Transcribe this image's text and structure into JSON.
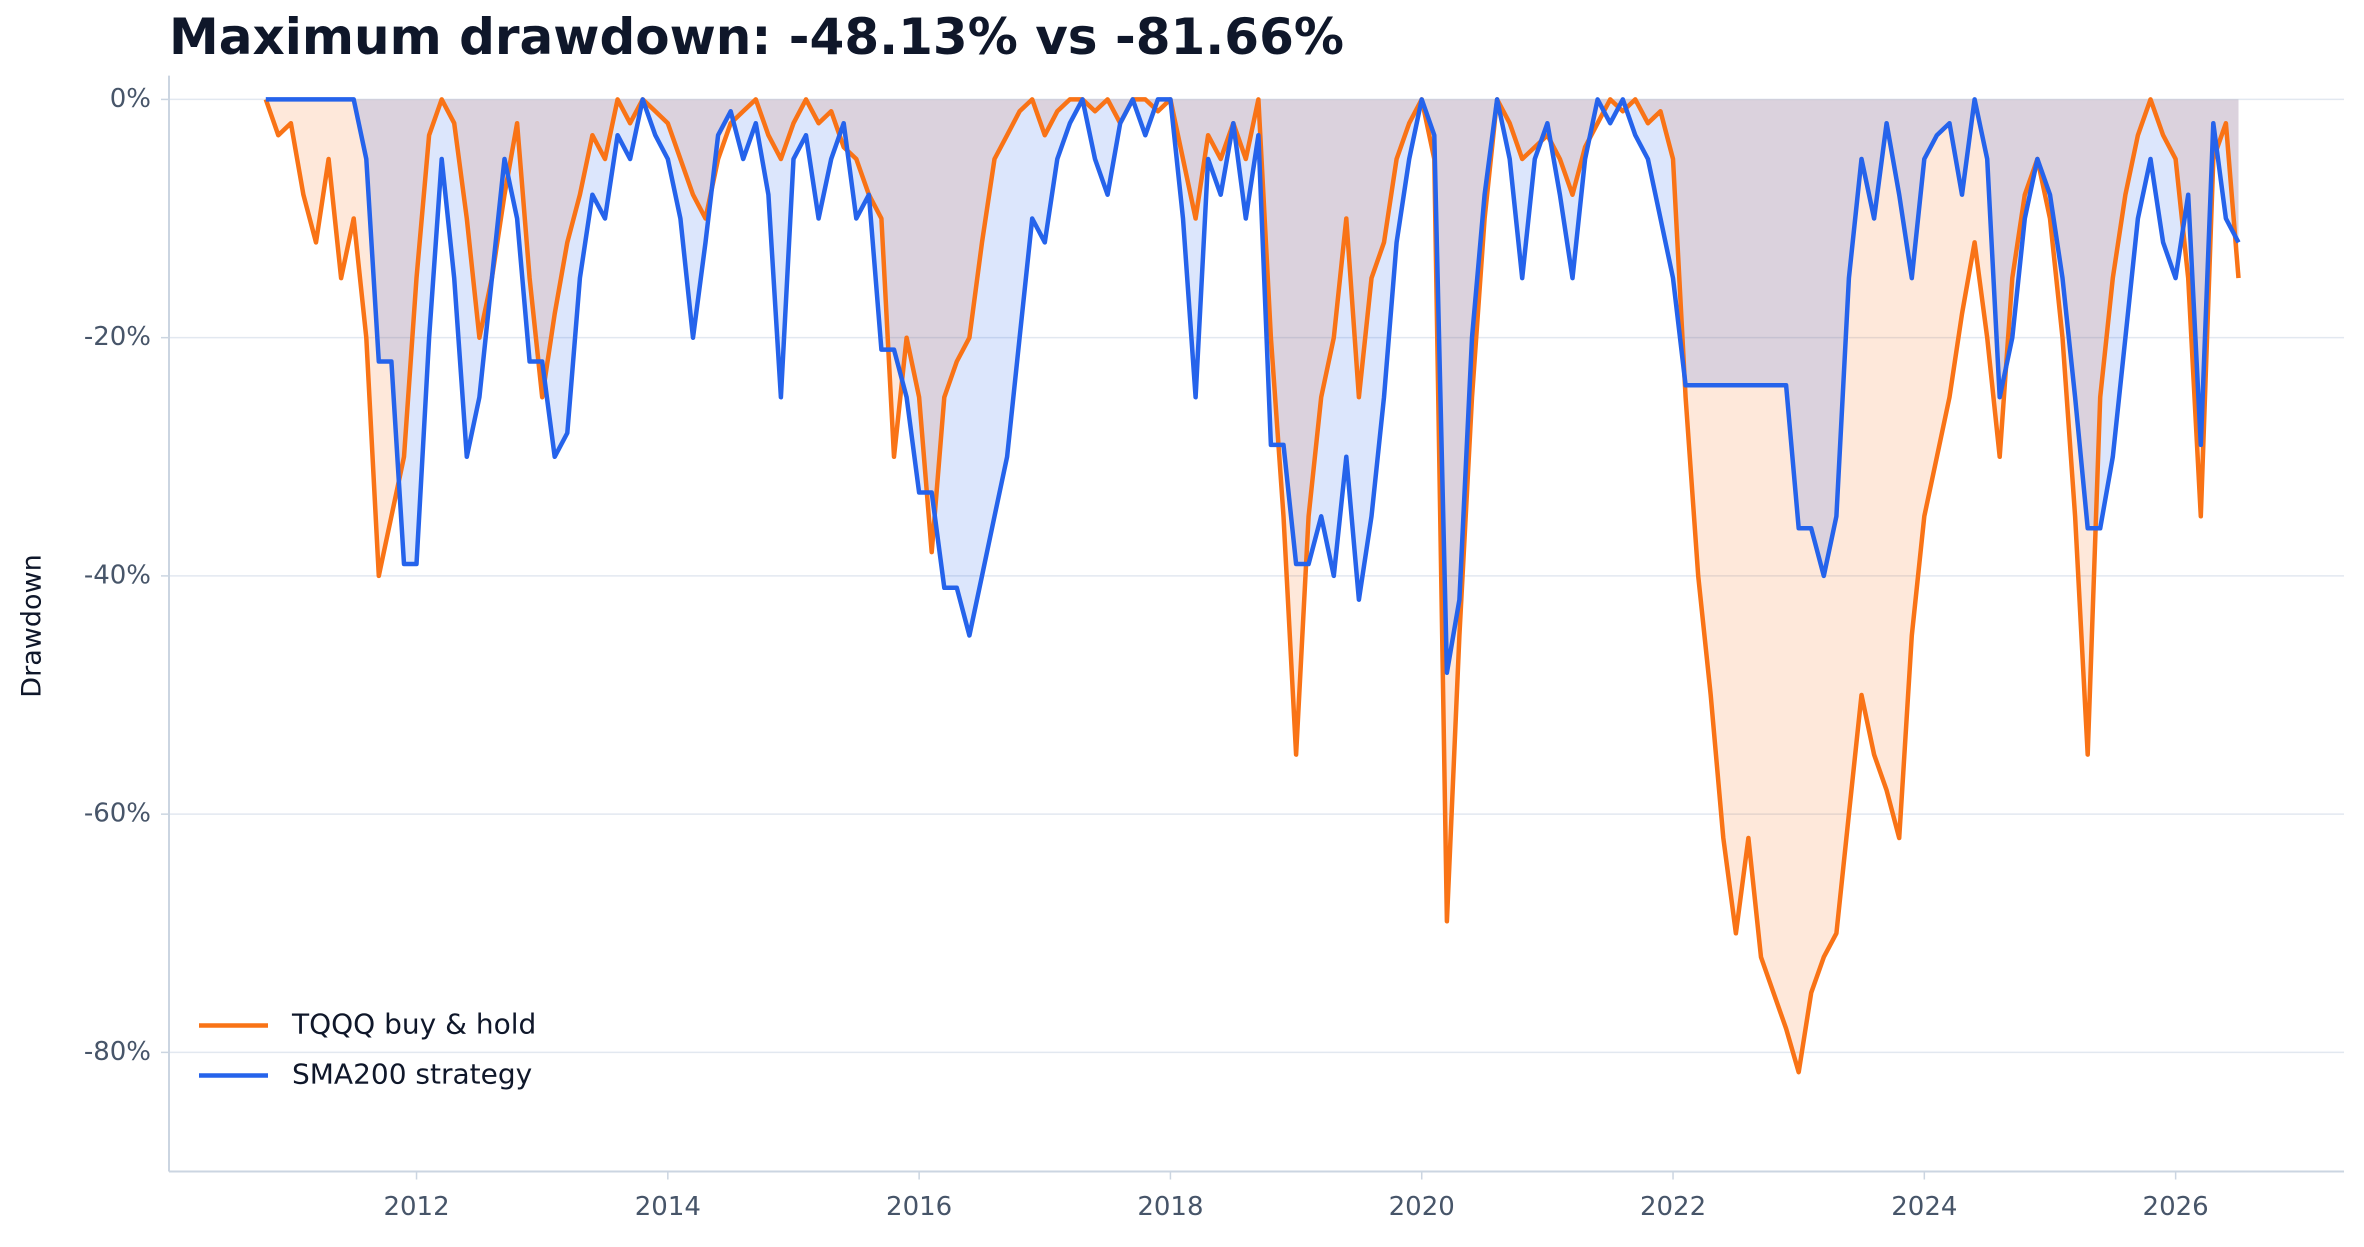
{
  "chart_data": {
    "type": "area-line",
    "title": "Maximum drawdown: -48.13% vs -81.66%",
    "y_label": "Drawdown",
    "x": [
      2010.8,
      2010.9,
      2011.0,
      2011.1,
      2011.2,
      2011.3,
      2011.4,
      2011.5,
      2011.6,
      2011.7,
      2011.8,
      2011.9,
      2012.0,
      2012.1,
      2012.2,
      2012.3,
      2012.4,
      2012.5,
      2012.6,
      2012.7,
      2012.8,
      2012.9,
      2013.0,
      2013.1,
      2013.2,
      2013.3,
      2013.4,
      2013.5,
      2013.6,
      2013.7,
      2013.8,
      2013.9,
      2014.0,
      2014.1,
      2014.2,
      2014.3,
      2014.4,
      2014.5,
      2014.6,
      2014.7,
      2014.8,
      2014.9,
      2015.0,
      2015.1,
      2015.2,
      2015.3,
      2015.4,
      2015.5,
      2015.6,
      2015.7,
      2015.8,
      2015.9,
      2016.0,
      2016.1,
      2016.2,
      2016.3,
      2016.4,
      2016.5,
      2016.6,
      2016.7,
      2016.8,
      2016.9,
      2017.0,
      2017.1,
      2017.2,
      2017.3,
      2017.4,
      2017.5,
      2017.6,
      2017.7,
      2017.8,
      2017.9,
      2018.0,
      2018.1,
      2018.2,
      2018.3,
      2018.4,
      2018.5,
      2018.6,
      2018.7,
      2018.8,
      2018.9,
      2019.0,
      2019.1,
      2019.2,
      2019.3,
      2019.4,
      2019.5,
      2019.6,
      2019.7,
      2019.8,
      2019.9,
      2020.0,
      2020.1,
      2020.2,
      2020.3,
      2020.4,
      2020.5,
      2020.6,
      2020.7,
      2020.8,
      2020.9,
      2021.0,
      2021.1,
      2021.2,
      2021.3,
      2021.4,
      2021.5,
      2021.6,
      2021.7,
      2021.8,
      2021.9,
      2022.0,
      2022.1,
      2022.2,
      2022.3,
      2022.4,
      2022.5,
      2022.6,
      2022.7,
      2022.8,
      2022.9,
      2023.0,
      2023.1,
      2023.2,
      2023.3,
      2023.4,
      2023.5,
      2023.6,
      2023.7,
      2023.8,
      2023.9,
      2024.0,
      2024.1,
      2024.2,
      2024.3,
      2024.4,
      2024.5,
      2024.6,
      2024.7,
      2024.8,
      2024.9,
      2025.0,
      2025.1,
      2025.2,
      2025.3,
      2025.4,
      2025.5,
      2025.6,
      2025.7,
      2025.8,
      2025.9,
      2026.0,
      2026.1,
      2026.2,
      2026.3,
      2026.4,
      2026.5
    ],
    "series": [
      {
        "name": "TQQQ buy & hold",
        "color": "#f97316",
        "fill": "#f97316",
        "values": [
          0,
          -3,
          -2,
          -8,
          -12,
          -5,
          -15,
          -10,
          -20,
          -40,
          -35,
          -30,
          -15,
          -3,
          0,
          -2,
          -10,
          -20,
          -15,
          -8,
          -2,
          -15,
          -25,
          -18,
          -12,
          -8,
          -3,
          -5,
          0,
          -2,
          0,
          -1,
          -2,
          -5,
          -8,
          -10,
          -5,
          -2,
          -1,
          0,
          -3,
          -5,
          -2,
          0,
          -2,
          -1,
          -4,
          -5,
          -8,
          -10,
          -30,
          -20,
          -25,
          -38,
          -25,
          -22,
          -20,
          -12,
          -5,
          -3,
          -1,
          0,
          -3,
          -1,
          0,
          0,
          -1,
          0,
          -2,
          0,
          0,
          -1,
          0,
          -5,
          -10,
          -3,
          -5,
          -2,
          -5,
          0,
          -20,
          -35,
          -55,
          -35,
          -25,
          -20,
          -10,
          -25,
          -15,
          -12,
          -5,
          -2,
          0,
          -5,
          -69,
          -45,
          -25,
          -10,
          0,
          -2,
          -5,
          -4,
          -3,
          -5,
          -8,
          -4,
          -2,
          0,
          -1,
          0,
          -2,
          -1,
          -5,
          -25,
          -40,
          -50,
          -62,
          -70,
          -62,
          -72,
          -75,
          -78,
          -81.66,
          -75,
          -72,
          -70,
          -60,
          -50,
          -55,
          -58,
          -62,
          -45,
          -35,
          -30,
          -25,
          -18,
          -12,
          -20,
          -30,
          -15,
          -8,
          -5,
          -10,
          -20,
          -35,
          -55,
          -25,
          -15,
          -8,
          -3,
          0,
          -3,
          -5,
          -15,
          -35,
          -5,
          -2,
          -15
        ]
      },
      {
        "name": "SMA200 strategy",
        "color": "#2563eb",
        "fill": "#2563eb",
        "values": [
          0,
          0,
          0,
          0,
          0,
          0,
          0,
          0,
          -5,
          -22,
          -22,
          -39,
          -39,
          -20,
          -5,
          -15,
          -30,
          -25,
          -15,
          -5,
          -10,
          -22,
          -22,
          -30,
          -28,
          -15,
          -8,
          -10,
          -3,
          -5,
          0,
          -3,
          -5,
          -10,
          -20,
          -12,
          -3,
          -1,
          -5,
          -2,
          -8,
          -25,
          -5,
          -3,
          -10,
          -5,
          -2,
          -10,
          -8,
          -21,
          -21,
          -25,
          -33,
          -33,
          -41,
          -41,
          -45,
          -40,
          -35,
          -30,
          -20,
          -10,
          -12,
          -5,
          -2,
          0,
          -5,
          -8,
          -2,
          0,
          -3,
          0,
          0,
          -10,
          -25,
          -5,
          -8,
          -2,
          -10,
          -3,
          -29,
          -29,
          -39,
          -39,
          -35,
          -40,
          -30,
          -42,
          -35,
          -25,
          -12,
          -5,
          0,
          -3,
          -48.13,
          -42,
          -20,
          -8,
          0,
          -5,
          -15,
          -5,
          -2,
          -8,
          -15,
          -5,
          0,
          -2,
          0,
          -3,
          -5,
          -10,
          -15,
          -24,
          -24,
          -24,
          -24,
          -24,
          -24,
          -24,
          -24,
          -24,
          -36,
          -36,
          -40,
          -35,
          -15,
          -5,
          -10,
          -2,
          -8,
          -15,
          -5,
          -3,
          -2,
          -8,
          0,
          -5,
          -25,
          -20,
          -10,
          -5,
          -8,
          -15,
          -25,
          -36,
          -36,
          -30,
          -20,
          -10,
          -5,
          -12,
          -15,
          -8,
          -29,
          -2,
          -10,
          -12
        ]
      }
    ],
    "xlim": [
      2010.03,
      2027.34
    ],
    "xticks": [
      2012,
      2014,
      2016,
      2018,
      2020,
      2022,
      2024,
      2026
    ],
    "ylim": [
      -90,
      2
    ],
    "yticks": [
      {
        "value": 0,
        "label": "0%"
      },
      {
        "value": -20,
        "label": "-20%"
      },
      {
        "value": -40,
        "label": "-40%"
      },
      {
        "value": -60,
        "label": "-60%"
      },
      {
        "value": -80,
        "label": "-80%"
      }
    ],
    "grid": true,
    "legend": "lower left"
  }
}
